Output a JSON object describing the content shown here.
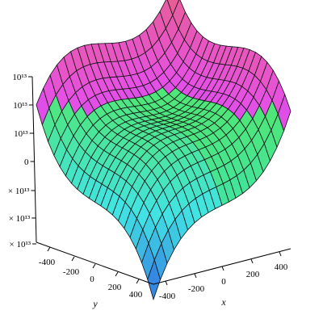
{
  "chart_data": {
    "type": "surface3d",
    "title": "",
    "function_samples": {
      "note_shape": "saddle-like cubic surface, highest at corner x=0,y=-500 region peak; lowest at corner y=400",
      "grid": 20
    },
    "x_axis": {
      "label": "x",
      "ticks": [
        "-400",
        "-200",
        "0",
        "200",
        "400"
      ],
      "range": [
        -500,
        500
      ]
    },
    "y_axis": {
      "label": "y",
      "ticks": [
        "-400",
        "-200",
        "0",
        "200",
        "400"
      ],
      "range": [
        -500,
        500
      ]
    },
    "z_axis": {
      "label": "",
      "ticks": [
        "10¹³",
        "10¹³",
        "10¹³",
        "0",
        "× 10¹³",
        "× 10¹³",
        "× 10¹³"
      ]
    },
    "grid": false,
    "legend": "none"
  }
}
